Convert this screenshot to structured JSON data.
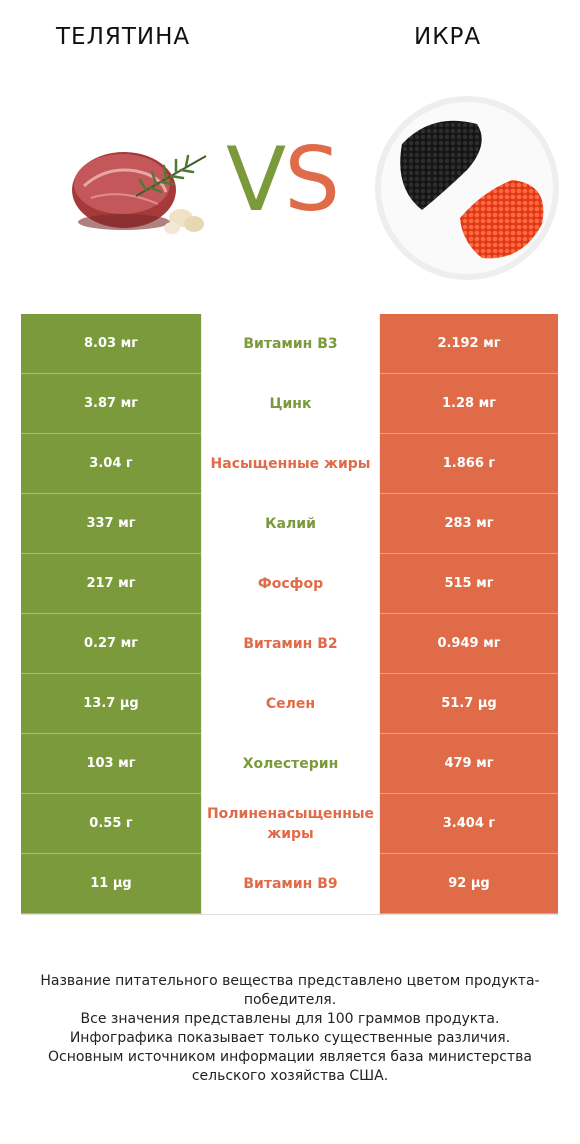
{
  "header": {
    "left_title": "ТЕЛЯТИНА",
    "right_title": "ИКРА",
    "vs_v": "V",
    "vs_s": "S"
  },
  "colors": {
    "left_accent": "#7a9a3b",
    "right_accent": "#e06b49"
  },
  "rows": [
    {
      "left": "8.03 мг",
      "name": "Витамин B3",
      "right": "2.192 мг",
      "winner": "left"
    },
    {
      "left": "3.87 мг",
      "name": "Цинк",
      "right": "1.28 мг",
      "winner": "left"
    },
    {
      "left": "3.04 г",
      "name": "Насыщенные жиры",
      "right": "1.866 г",
      "winner": "right"
    },
    {
      "left": "337 мг",
      "name": "Калий",
      "right": "283 мг",
      "winner": "left"
    },
    {
      "left": "217 мг",
      "name": "Фосфор",
      "right": "515 мг",
      "winner": "right"
    },
    {
      "left": "0.27 мг",
      "name": "Витамин B2",
      "right": "0.949 мг",
      "winner": "right"
    },
    {
      "left": "13.7 µg",
      "name": "Селен",
      "right": "51.7 µg",
      "winner": "right"
    },
    {
      "left": "103 мг",
      "name": "Холестерин",
      "right": "479 мг",
      "winner": "left"
    },
    {
      "left": "0.55 г",
      "name": "Полиненасыщенные жиры",
      "right": "3.404 г",
      "winner": "right"
    },
    {
      "left": "11 µg",
      "name": "Витамин B9",
      "right": "92 µg",
      "winner": "right"
    }
  ],
  "footer": {
    "line1": "Название питательного вещества представлено цветом продукта-победителя.",
    "line2": "Все значения представлены для 100 граммов продукта.",
    "line3": "Инфографика показывает только существенные различия.",
    "line4": "Основным источником информации является база министерства сельского хозяйства США."
  }
}
